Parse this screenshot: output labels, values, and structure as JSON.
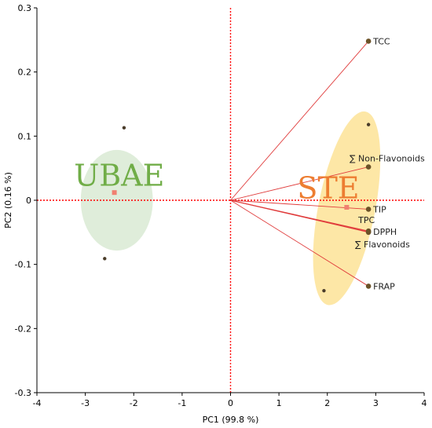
{
  "chart_data": {
    "type": "scatter",
    "subtype": "pca-biplot",
    "xlabel": "PC1  (99.8 %)",
    "ylabel": "PC2  (0.16 %)",
    "xlim": [
      -4,
      4
    ],
    "ylim": [
      -0.3,
      0.3
    ],
    "x_ticks": [
      -4,
      -3,
      -2,
      -1,
      0,
      1,
      2,
      3,
      4
    ],
    "y_ticks": [
      -0.3,
      -0.2,
      -0.1,
      0,
      0.1,
      0.2,
      0.3
    ],
    "x_tick_labels": [
      "-4",
      "-3",
      "-2",
      "-1",
      "0",
      "1",
      "2",
      "3",
      "4"
    ],
    "y_tick_labels": [
      "-0.3",
      "-0.2",
      "-0.1",
      "0",
      "0.1",
      "0.2",
      "0.3"
    ],
    "grid": false,
    "reference_lines": {
      "x": 0,
      "y": 0,
      "style": "dotted",
      "color": "#ff0000"
    },
    "groups": [
      {
        "name": "UBAE",
        "label_color": "#70ad47",
        "fill_color": "#d9ead3",
        "ellipse": {
          "cx": -2.35,
          "cy": 0.0,
          "rx": 1.23,
          "ry": 0.14,
          "rotation_deg": 0
        },
        "centroid": {
          "x": -2.4,
          "y": 0.012
        },
        "samples": [
          {
            "x": -2.2,
            "y": 0.113
          },
          {
            "x": -2.6,
            "y": -0.091
          }
        ]
      },
      {
        "name": "STE",
        "label_color": "#ed7d31",
        "fill_color": "#fde49c",
        "ellipse": {
          "cx": 2.4,
          "cy": -0.0125,
          "rx": 0.85,
          "ry": 0.29,
          "rotation_deg": 11
        },
        "centroid": {
          "x": 2.4,
          "y": -0.011
        },
        "samples": [
          {
            "x": 2.85,
            "y": 0.118
          },
          {
            "x": 1.93,
            "y": -0.141
          }
        ]
      }
    ],
    "loadings": [
      {
        "name": "TCC",
        "x": 2.85,
        "y": 0.248
      },
      {
        "name": "∑ Non-Flavonoids",
        "x": 2.85,
        "y": 0.052
      },
      {
        "name": "TIP",
        "x": 2.85,
        "y": -0.014
      },
      {
        "name": "TPC",
        "x": 2.85,
        "y": -0.048
      },
      {
        "name": "DPPH",
        "x": 2.85,
        "y": -0.049
      },
      {
        "name": "∑ Flavonoids",
        "x": 2.85,
        "y": -0.05
      },
      {
        "name": "FRAP",
        "x": 2.85,
        "y": -0.134
      }
    ],
    "colors": {
      "loading_line": "#e03c3c",
      "point": "#6b5228",
      "centroid": "#f08070",
      "axis": "#000000"
    }
  }
}
